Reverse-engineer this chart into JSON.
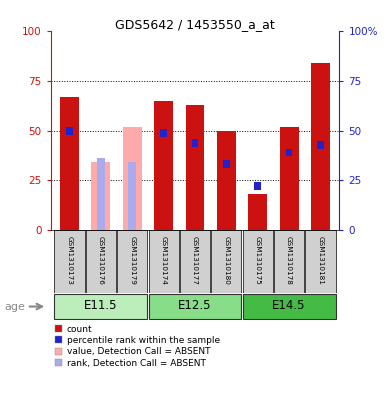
{
  "title": "GDS5642 / 1453550_a_at",
  "samples": [
    "GSM1310173",
    "GSM1310176",
    "GSM1310179",
    "GSM1310174",
    "GSM1310177",
    "GSM1310180",
    "GSM1310175",
    "GSM1310178",
    "GSM1310181"
  ],
  "groups": [
    {
      "label": "E11.5",
      "color": "#bbeebb",
      "start": 0,
      "end": 3
    },
    {
      "label": "E12.5",
      "color": "#88dd88",
      "start": 3,
      "end": 6
    },
    {
      "label": "E14.5",
      "color": "#44bb44",
      "start": 6,
      "end": 9
    }
  ],
  "red_bars": [
    67,
    0,
    0,
    65,
    63,
    50,
    18,
    52,
    84
  ],
  "blue_bars": [
    50,
    0,
    0,
    49,
    44,
    33,
    22,
    39,
    43
  ],
  "pink_bars": [
    0,
    34,
    52,
    0,
    0,
    0,
    0,
    0,
    0
  ],
  "lightblue_bars": [
    0,
    36,
    34,
    0,
    0,
    0,
    0,
    0,
    0
  ],
  "absent_mask": [
    false,
    true,
    true,
    false,
    false,
    false,
    false,
    false,
    false
  ],
  "ylim": [
    0,
    100
  ],
  "yticks": [
    0,
    25,
    50,
    75,
    100
  ],
  "bar_width": 0.6,
  "red_color": "#cc1111",
  "blue_color": "#2222cc",
  "pink_color": "#ffaaaa",
  "lightblue_color": "#aaaaee",
  "legend_items": [
    {
      "color": "#cc1111",
      "label": "count"
    },
    {
      "color": "#2222cc",
      "label": "percentile rank within the sample"
    },
    {
      "color": "#ffaaaa",
      "label": "value, Detection Call = ABSENT"
    },
    {
      "color": "#aaaaee",
      "label": "rank, Detection Call = ABSENT"
    }
  ],
  "age_label": "age",
  "tick_color_left": "#cc1111",
  "tick_color_right": "#2222cc",
  "right_ytick_labels": [
    "0",
    "25",
    "50",
    "75",
    "100%"
  ]
}
